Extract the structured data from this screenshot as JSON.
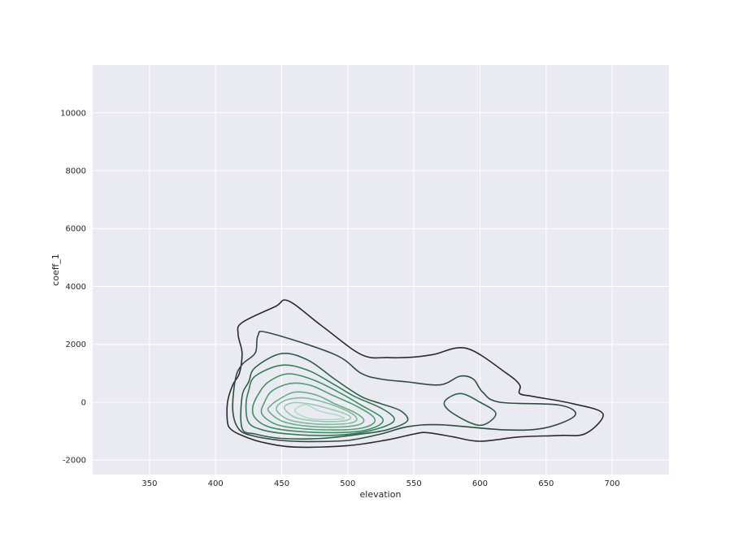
{
  "chart_data": {
    "type": "contour",
    "xlabel": "elevation",
    "ylabel": "coeff_1",
    "xlim": [
      307,
      743
    ],
    "ylim": [
      -2500,
      11650
    ],
    "xticks": [
      350,
      400,
      450,
      500,
      550,
      600,
      650,
      700
    ],
    "yticks": [
      -2000,
      0,
      2000,
      4000,
      6000,
      8000,
      10000
    ],
    "grid": true,
    "background": "#eaeaf2",
    "grid_color": "#ffffff",
    "contour_colors": [
      "#2b2b2b",
      "#2e4b3e",
      "#305e48",
      "#337d56",
      "#3d8f62",
      "#4e9f73",
      "#67ae88",
      "#80bb9d",
      "#9ac8b3",
      "#b6d8cb"
    ],
    "contours": [
      {
        "level": 1,
        "points": [
          [
            409,
            -700
          ],
          [
            412,
            -950
          ],
          [
            420,
            -1150
          ],
          [
            435,
            -1380
          ],
          [
            460,
            -1550
          ],
          [
            500,
            -1500
          ],
          [
            530,
            -1300
          ],
          [
            550,
            -1100
          ],
          [
            560,
            -1050
          ],
          [
            580,
            -1200
          ],
          [
            600,
            -1350
          ],
          [
            630,
            -1200
          ],
          [
            660,
            -1150
          ],
          [
            680,
            -1080
          ],
          [
            693,
            -400
          ],
          [
            670,
            -50
          ],
          [
            640,
            200
          ],
          [
            630,
            300
          ],
          [
            630,
            600
          ],
          [
            620,
            1000
          ],
          [
            590,
            1860
          ],
          [
            565,
            1650
          ],
          [
            550,
            1560
          ],
          [
            530,
            1540
          ],
          [
            510,
            1650
          ],
          [
            480,
            2650
          ],
          [
            455,
            3500
          ],
          [
            445,
            3300
          ],
          [
            420,
            2750
          ],
          [
            417,
            2350
          ],
          [
            420,
            1700
          ],
          [
            418,
            1000
          ],
          [
            413,
            600
          ],
          [
            409,
            0
          ]
        ],
        "closed": true
      },
      {
        "level": 2,
        "points": [
          [
            418,
            -950
          ],
          [
            430,
            -1180
          ],
          [
            450,
            -1320
          ],
          [
            470,
            -1360
          ],
          [
            500,
            -1320
          ],
          [
            525,
            -1100
          ],
          [
            545,
            -850
          ],
          [
            570,
            -780
          ],
          [
            620,
            -960
          ],
          [
            650,
            -880
          ],
          [
            672,
            -450
          ],
          [
            660,
            -100
          ],
          [
            615,
            0
          ],
          [
            602,
            350
          ],
          [
            595,
            800
          ],
          [
            585,
            900
          ],
          [
            570,
            600
          ],
          [
            545,
            700
          ],
          [
            525,
            800
          ],
          [
            510,
            1000
          ],
          [
            490,
            1650
          ],
          [
            440,
            2400
          ],
          [
            432,
            2300
          ],
          [
            430,
            1700
          ],
          [
            420,
            1300
          ],
          [
            415,
            800
          ],
          [
            413,
            -300
          ]
        ],
        "closed": true
      },
      {
        "level": 3,
        "points": [
          [
            420,
            -900
          ],
          [
            430,
            -1100
          ],
          [
            450,
            -1250
          ],
          [
            480,
            -1250
          ],
          [
            510,
            -1100
          ],
          [
            530,
            -950
          ],
          [
            545,
            -650
          ],
          [
            540,
            -300
          ],
          [
            525,
            -50
          ],
          [
            510,
            200
          ],
          [
            490,
            800
          ],
          [
            470,
            1450
          ],
          [
            450,
            1680
          ],
          [
            430,
            1200
          ],
          [
            425,
            700
          ],
          [
            420,
            200
          ]
        ],
        "closed": true
      },
      {
        "level": 3,
        "points": [
          [
            580,
            -400
          ],
          [
            600,
            -800
          ],
          [
            612,
            -400
          ],
          [
            600,
            0
          ],
          [
            585,
            300
          ],
          [
            573,
            0
          ]
        ],
        "closed": true
      },
      {
        "level": 4,
        "points": [
          [
            425,
            -700
          ],
          [
            435,
            -950
          ],
          [
            455,
            -1100
          ],
          [
            485,
            -1150
          ],
          [
            510,
            -1050
          ],
          [
            530,
            -800
          ],
          [
            535,
            -550
          ],
          [
            525,
            -200
          ],
          [
            505,
            200
          ],
          [
            490,
            600
          ],
          [
            470,
            1100
          ],
          [
            450,
            1280
          ],
          [
            430,
            900
          ],
          [
            425,
            400
          ],
          [
            423,
            -100
          ]
        ],
        "closed": true
      },
      {
        "level": 5,
        "points": [
          [
            430,
            -550
          ],
          [
            440,
            -850
          ],
          [
            460,
            -1000
          ],
          [
            490,
            -1050
          ],
          [
            512,
            -980
          ],
          [
            525,
            -750
          ],
          [
            525,
            -500
          ],
          [
            510,
            -100
          ],
          [
            495,
            300
          ],
          [
            475,
            750
          ],
          [
            455,
            980
          ],
          [
            440,
            700
          ],
          [
            432,
            250
          ],
          [
            428,
            -200
          ]
        ],
        "closed": true
      },
      {
        "level": 6,
        "points": [
          [
            435,
            -400
          ],
          [
            445,
            -750
          ],
          [
            462,
            -900
          ],
          [
            490,
            -960
          ],
          [
            510,
            -900
          ],
          [
            520,
            -700
          ],
          [
            518,
            -450
          ],
          [
            505,
            -100
          ],
          [
            488,
            250
          ],
          [
            472,
            580
          ],
          [
            457,
            650
          ],
          [
            443,
            400
          ],
          [
            437,
            0
          ]
        ],
        "closed": true
      },
      {
        "level": 7,
        "points": [
          [
            440,
            -300
          ],
          [
            450,
            -650
          ],
          [
            468,
            -820
          ],
          [
            492,
            -860
          ],
          [
            508,
            -780
          ],
          [
            512,
            -600
          ],
          [
            505,
            -350
          ],
          [
            490,
            -50
          ],
          [
            476,
            250
          ],
          [
            460,
            350
          ],
          [
            448,
            100
          ],
          [
            442,
            -100
          ]
        ],
        "closed": true
      },
      {
        "level": 8,
        "points": [
          [
            446,
            -250
          ],
          [
            455,
            -600
          ],
          [
            472,
            -740
          ],
          [
            493,
            -760
          ],
          [
            505,
            -680
          ],
          [
            506,
            -500
          ],
          [
            497,
            -250
          ],
          [
            482,
            0
          ],
          [
            466,
            150
          ],
          [
            452,
            50
          ]
        ],
        "closed": true
      },
      {
        "level": 9,
        "points": [
          [
            452,
            -200
          ],
          [
            460,
            -520
          ],
          [
            476,
            -650
          ],
          [
            494,
            -660
          ],
          [
            502,
            -560
          ],
          [
            498,
            -400
          ],
          [
            484,
            -200
          ],
          [
            470,
            -50
          ],
          [
            458,
            -20
          ]
        ],
        "closed": true
      },
      {
        "level": 10,
        "points": [
          [
            460,
            -300
          ],
          [
            470,
            -550
          ],
          [
            485,
            -600
          ],
          [
            497,
            -560
          ],
          [
            492,
            -450
          ],
          [
            478,
            -300
          ],
          [
            468,
            -80
          ]
        ],
        "closed": true
      }
    ]
  }
}
